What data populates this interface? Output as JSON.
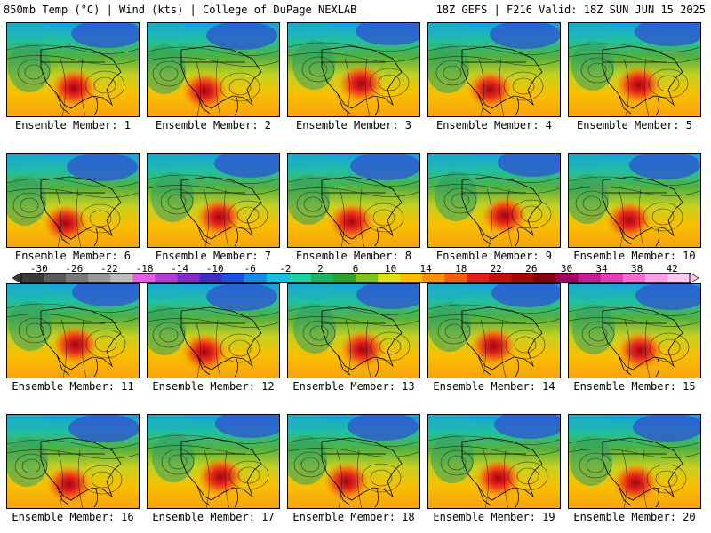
{
  "header": {
    "left_title": "850mb Temp (°C) | Wind (kts) | College of DuPage NEXLAB",
    "right_title": "18Z GEFS | F216 Valid: 18Z SUN JUN 15 2025"
  },
  "panels": [
    {
      "label": "Ensemble Member: 1"
    },
    {
      "label": "Ensemble Member: 2"
    },
    {
      "label": "Ensemble Member: 3"
    },
    {
      "label": "Ensemble Member: 4"
    },
    {
      "label": "Ensemble Member: 5"
    },
    {
      "label": "Ensemble Member: 6"
    },
    {
      "label": "Ensemble Member: 7"
    },
    {
      "label": "Ensemble Member: 8"
    },
    {
      "label": "Ensemble Member: 9"
    },
    {
      "label": "Ensemble Member: 10"
    },
    {
      "label": "Ensemble Member: 11"
    },
    {
      "label": "Ensemble Member: 12"
    },
    {
      "label": "Ensemble Member: 13"
    },
    {
      "label": "Ensemble Member: 14"
    },
    {
      "label": "Ensemble Member: 15"
    },
    {
      "label": "Ensemble Member: 16"
    },
    {
      "label": "Ensemble Member: 17"
    },
    {
      "label": "Ensemble Member: 18"
    },
    {
      "label": "Ensemble Member: 19"
    },
    {
      "label": "Ensemble Member: 20"
    }
  ],
  "colorbar": {
    "labels": [
      "-30",
      "-26",
      "-22",
      "-18",
      "-14",
      "-10",
      "-6",
      "-2",
      "2",
      "6",
      "10",
      "14",
      "18",
      "22",
      "26",
      "30",
      "34",
      "38",
      "42"
    ],
    "colors": [
      "#3a3a3a",
      "#5a5a5a",
      "#7a7a7a",
      "#9a9a9a",
      "#bdbdbd",
      "#e060e0",
      "#b040d0",
      "#8030c0",
      "#4030c0",
      "#2050e0",
      "#1a8ae0",
      "#18c0e0",
      "#20d0a0",
      "#20b060",
      "#30a030",
      "#80c020",
      "#e0e020",
      "#f8c000",
      "#f89010",
      "#f06010",
      "#e02020",
      "#c01010",
      "#a00808",
      "#800010",
      "#a00060",
      "#c02090",
      "#e040b0",
      "#f070d0",
      "#f8a0e0",
      "#f8c8f0"
    ],
    "min": -32,
    "max": 44
  }
}
